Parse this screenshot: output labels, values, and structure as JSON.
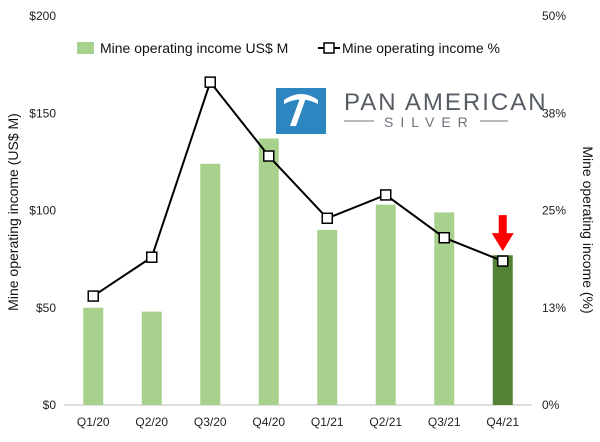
{
  "chart_data": {
    "type": "bar",
    "categories": [
      "Q1/20",
      "Q2/20",
      "Q3/20",
      "Q4/20",
      "Q1/21",
      "Q2/21",
      "Q3/21",
      "Q4/21"
    ],
    "series": [
      {
        "name": "Mine operating income US$ M",
        "kind": "bar",
        "axis": "left",
        "values": [
          50,
          48,
          124,
          137,
          90,
          103,
          99,
          77
        ],
        "color": "#a9d18e",
        "highlight_color": "#548235",
        "highlight_index": 7
      },
      {
        "name": "Mine operating income %",
        "kind": "line",
        "axis": "right",
        "values": [
          14,
          19,
          41.5,
          32,
          24,
          27,
          21.5,
          18.5
        ],
        "color": "#000000",
        "marker": "hollow-square"
      }
    ],
    "ylabel": "Mine operating income (US$ M)",
    "y2label": "Mine operating income (%)",
    "ylim": [
      0,
      200
    ],
    "y2lim": [
      0,
      50
    ],
    "yticks": [
      "$0",
      "$50",
      "$100",
      "$150",
      "$200"
    ],
    "y2ticks": [
      "0%",
      "13%",
      "25%",
      "38%",
      "50%"
    ],
    "grid": false,
    "legend": "top",
    "annotation": {
      "type": "arrow",
      "direction": "down",
      "target_index": 7,
      "color": "#ff0000"
    }
  },
  "logo": {
    "line1": "PAN AMERICAN",
    "line2": "SILVER",
    "icon": "pickaxe-icon",
    "icon_color": "#2e86c1"
  }
}
